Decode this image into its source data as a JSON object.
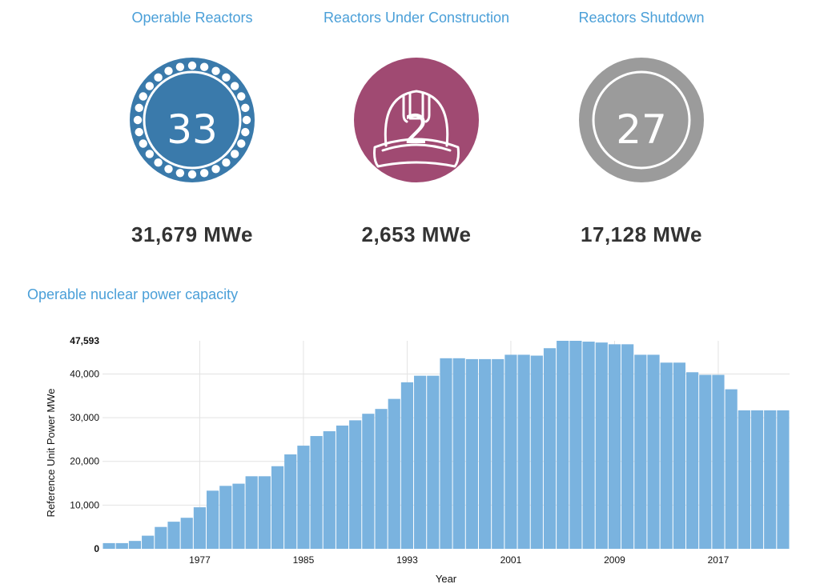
{
  "stats": {
    "operable": {
      "title": "Operable Reactors",
      "count": "33",
      "capacity": "31,679 MWe",
      "color": "#3a7aab",
      "icon": "reactor-core-icon"
    },
    "construction": {
      "title": "Reactors Under Construction",
      "count": "2",
      "capacity": "2,653 MWe",
      "color": "#a04a72",
      "icon": "hard-hat-icon"
    },
    "shutdown": {
      "title": "Reactors Shutdown",
      "count": "27",
      "capacity": "17,128 MWe",
      "color": "#9b9b9b",
      "icon": "ring-icon"
    }
  },
  "section_title": "Operable nuclear power capacity",
  "chart_data": {
    "type": "bar",
    "xlabel": "Year",
    "ylabel": "Reference Unit Power MWe",
    "ylim": [
      0,
      47593
    ],
    "y_ticks": [
      "0",
      "10,000",
      "20,000",
      "30,000",
      "40,000",
      "47,593"
    ],
    "y_tick_values": [
      0,
      10000,
      20000,
      30000,
      40000,
      47593
    ],
    "x_ticks": [
      "1977",
      "1985",
      "1993",
      "2001",
      "2009",
      "2017"
    ],
    "grid": true,
    "color": "#7ab3df",
    "categories": [
      1970,
      1971,
      1972,
      1973,
      1974,
      1975,
      1976,
      1977,
      1978,
      1979,
      1980,
      1981,
      1982,
      1983,
      1984,
      1985,
      1986,
      1987,
      1988,
      1989,
      1990,
      1991,
      1992,
      1993,
      1994,
      1995,
      1996,
      1997,
      1998,
      1999,
      2000,
      2001,
      2002,
      2003,
      2004,
      2005,
      2006,
      2007,
      2008,
      2009,
      2010,
      2011,
      2012,
      2013,
      2014,
      2015,
      2016,
      2017,
      2018,
      2019,
      2020,
      2021,
      2022
    ],
    "values": [
      1300,
      1300,
      1800,
      3000,
      5000,
      6200,
      7100,
      9500,
      13300,
      14400,
      14900,
      16600,
      16600,
      18900,
      21600,
      23600,
      25800,
      26900,
      28200,
      29400,
      30900,
      32000,
      34300,
      38100,
      39600,
      39600,
      43600,
      43600,
      43400,
      43400,
      43400,
      44400,
      44400,
      44200,
      45900,
      47593,
      47593,
      47400,
      47200,
      46800,
      46800,
      44400,
      44400,
      42600,
      42600,
      40400,
      39800,
      39800,
      36500,
      31679,
      31679,
      31679,
      31679
    ]
  }
}
